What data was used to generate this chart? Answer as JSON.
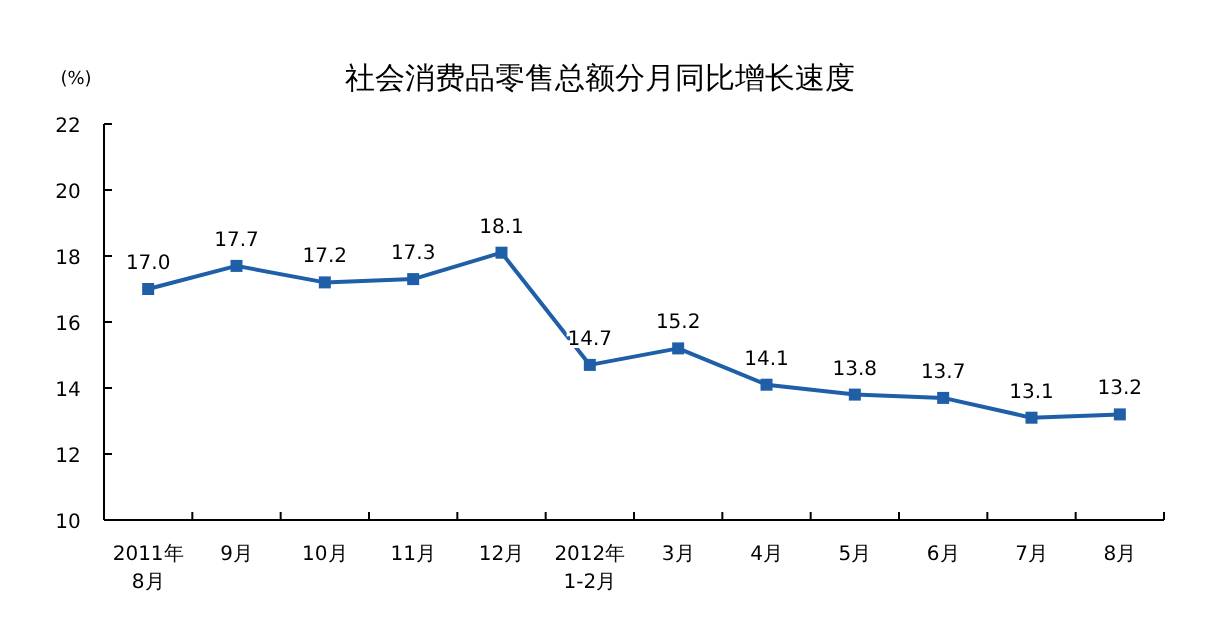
{
  "chart_data": {
    "type": "line",
    "title": "社会消费品零售总额分月同比增长速度",
    "ylabel": "(%)",
    "categories": [
      "2011年\n8月",
      "9月",
      "10月",
      "11月",
      "12月",
      "2012年\n1-2月",
      "3月",
      "4月",
      "5月",
      "6月",
      "7月",
      "8月"
    ],
    "series": [
      {
        "color": "#1f5fa8",
        "values": [
          17.0,
          17.7,
          17.2,
          17.3,
          18.1,
          14.7,
          15.2,
          14.1,
          13.8,
          13.7,
          13.1,
          13.2
        ],
        "value_labels": [
          "17.0",
          "17.7",
          "17.2",
          "17.3",
          "18.1",
          "14.7",
          "15.2",
          "14.1",
          "13.8",
          "13.7",
          "13.1",
          "13.2"
        ]
      }
    ],
    "ylim": [
      10,
      22
    ],
    "yticks": [
      10,
      12,
      14,
      16,
      18,
      20,
      22
    ],
    "marker": "square",
    "line_style": "solid",
    "grid": false
  }
}
